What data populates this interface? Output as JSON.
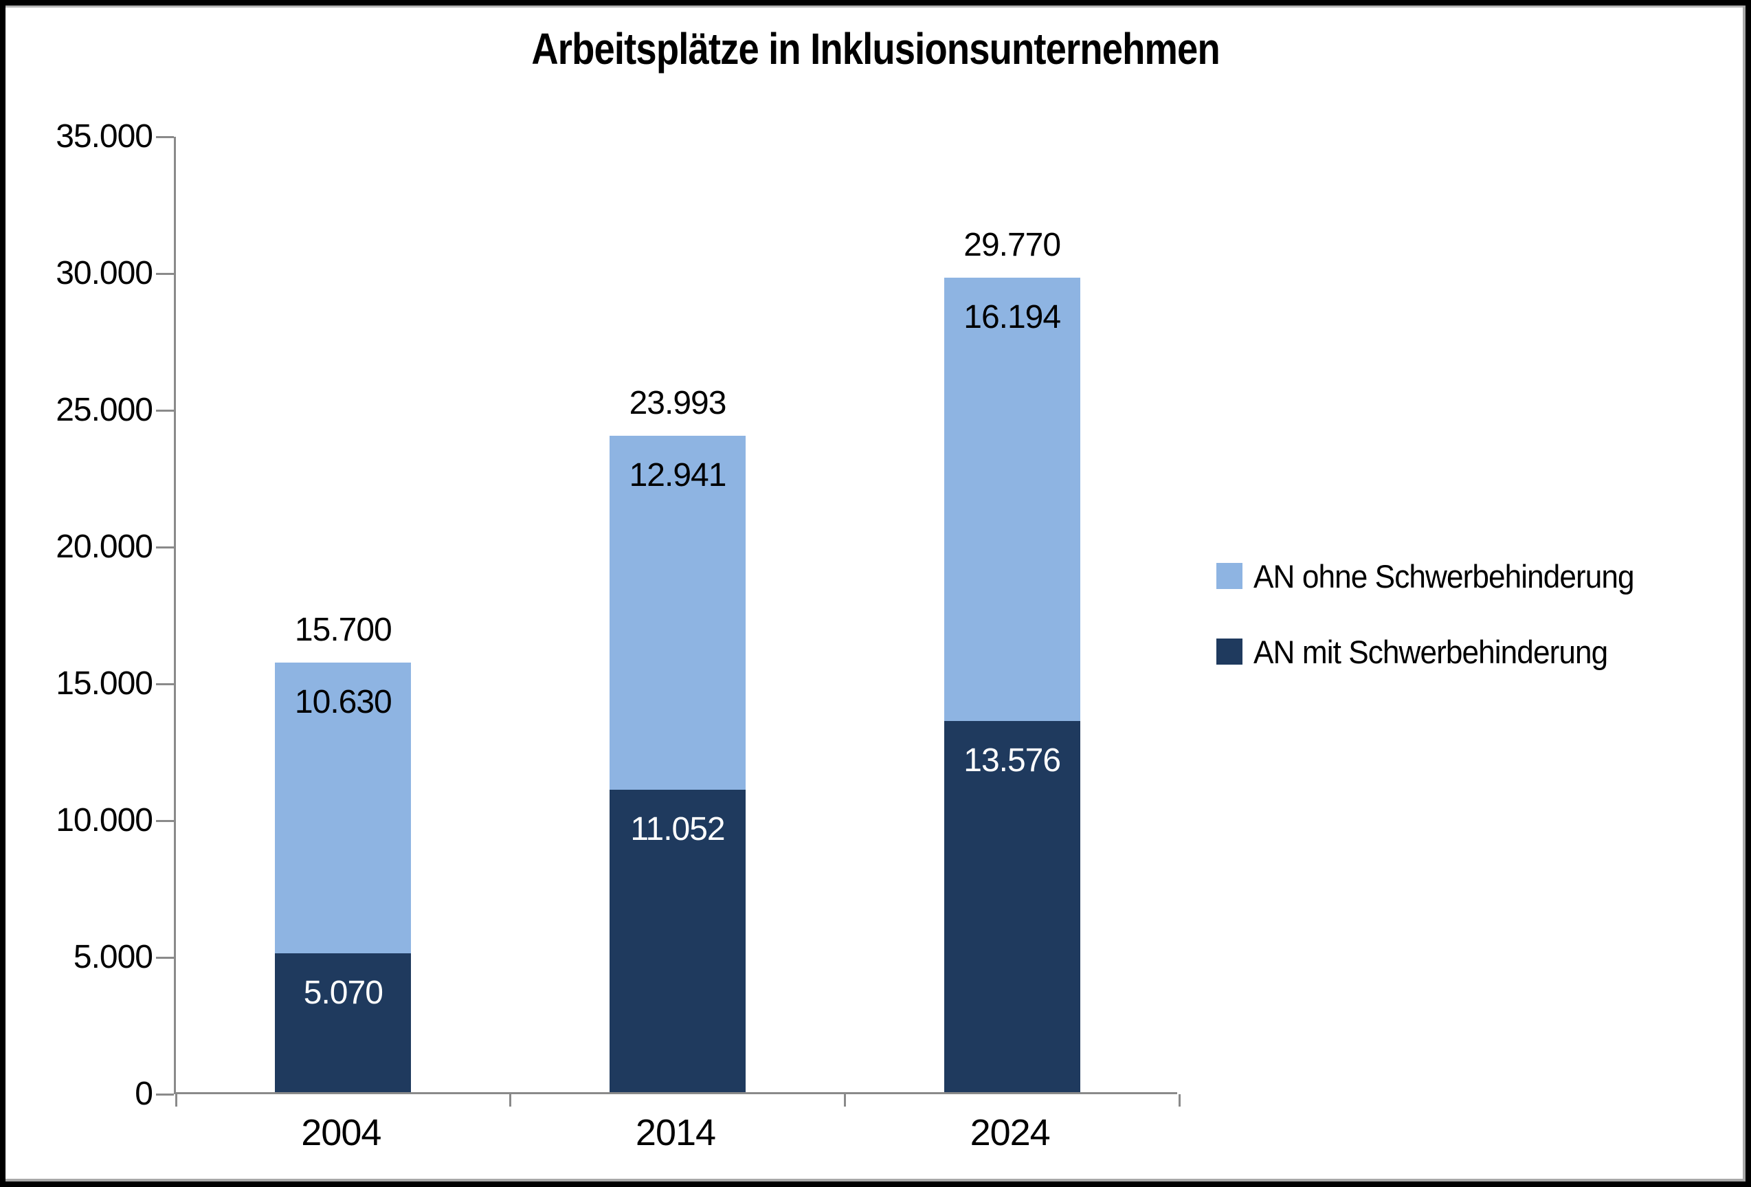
{
  "chart_data": {
    "type": "bar",
    "stacked": true,
    "title": "Arbeitsplätze in Inklusionsunternehmen",
    "categories": [
      "2004",
      "2014",
      "2024"
    ],
    "series": [
      {
        "name": "AN mit Schwerbehinderung",
        "color": "#1F3A5E",
        "label_color": "#FFFFFF",
        "values": [
          5070,
          11052,
          13576
        ],
        "value_labels": [
          "5.070",
          "11.052",
          "13.576"
        ]
      },
      {
        "name": "AN ohne Schwerbehinderung",
        "color": "#8EB4E2",
        "label_color": "#000000",
        "values": [
          10630,
          12941,
          16194
        ],
        "value_labels": [
          "10.630",
          "12.941",
          "16.194"
        ]
      }
    ],
    "totals": {
      "values": [
        15700,
        23993,
        29770
      ],
      "labels": [
        "15.700",
        "23.993",
        "29.770"
      ]
    },
    "y_axis": {
      "min": 0,
      "max": 35000,
      "tick_step": 5000,
      "tick_labels": [
        "0",
        "5.000",
        "10.000",
        "15.000",
        "20.000",
        "25.000",
        "30.000",
        "35.000"
      ]
    },
    "x_axis": {
      "labels": [
        "2004",
        "2014",
        "2024"
      ]
    },
    "legend": {
      "position": "right",
      "entries": [
        {
          "label": "AN ohne Schwerbehinderung",
          "color": "#8EB4E2"
        },
        {
          "label": "AN mit Schwerbehinderung",
          "color": "#1F3A5E"
        }
      ]
    },
    "grid": false,
    "axis_color": "#8a8a8a",
    "background": "#FFFFFF"
  }
}
